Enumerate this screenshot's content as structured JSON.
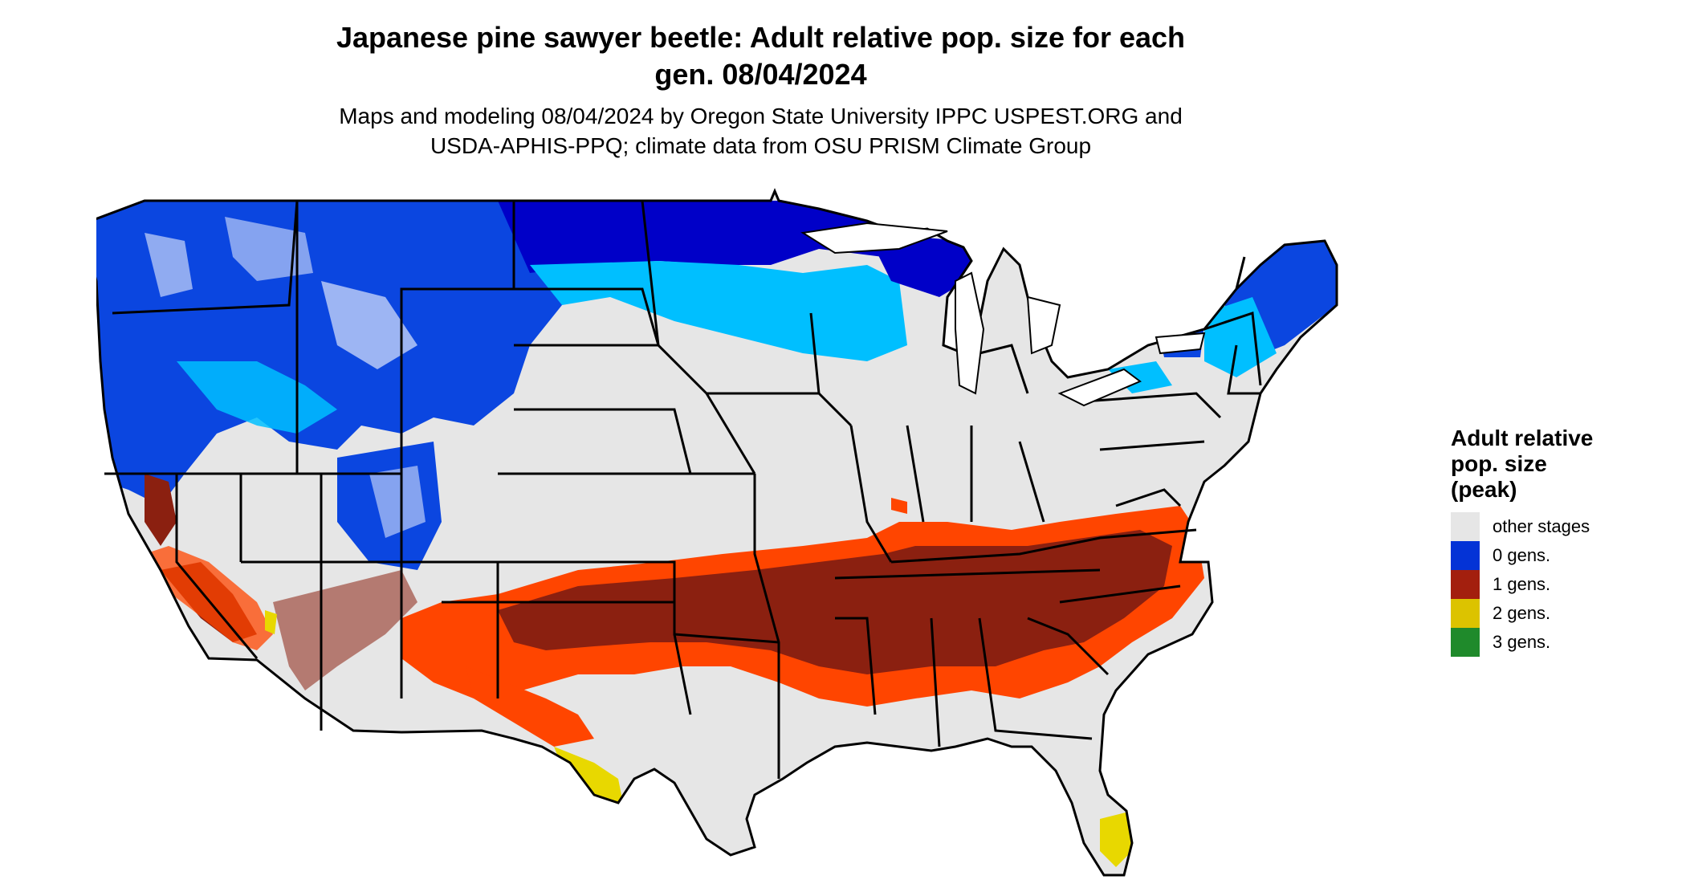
{
  "title_line1": "Japanese pine sawyer beetle: Adult relative pop. size for each",
  "title_line2": "gen. 08/04/2024",
  "subtitle_line1": "Maps and modeling 08/04/2024 by Oregon State University IPPC USPEST.ORG and",
  "subtitle_line2": "USDA-APHIS-PPQ; climate data from OSU PRISM Climate Group",
  "legend": {
    "title_line1": "Adult relative",
    "title_line2": "pop. size",
    "title_line3": "(peak)",
    "items": [
      {
        "label": "other stages",
        "color": "#e6e6e6"
      },
      {
        "label": "0 gens.",
        "color": "#0433d6"
      },
      {
        "label": "1 gens.",
        "color": "#a31f0e"
      },
      {
        "label": "2 gens.",
        "color": "#dcc300"
      },
      {
        "label": "3 gens.",
        "color": "#1f8a2b"
      }
    ]
  },
  "map_colors": {
    "background": "#e6e6e6",
    "gen0_dark": "#0000c8",
    "gen0_mid": "#0b46e0",
    "gen0_light": "#00bfff",
    "gen1_dark": "#8b2010",
    "gen1_orange": "#ff4500",
    "gen2_yellow": "#e8d800",
    "borders": "#000000"
  }
}
